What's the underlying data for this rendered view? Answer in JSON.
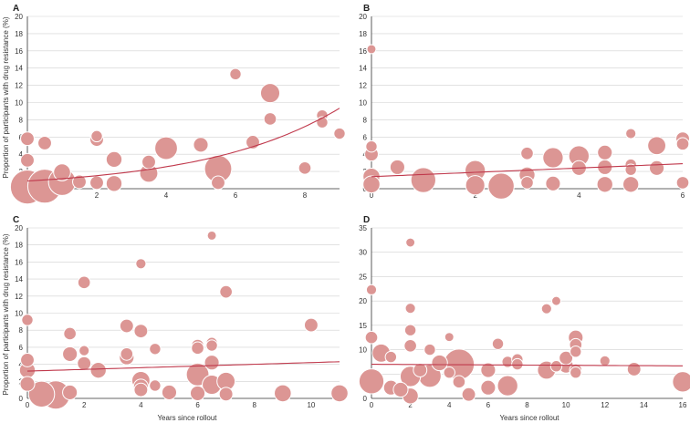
{
  "figure": {
    "ylabel": "Proportion of participants with drug resistance (%)",
    "xlabel": "Years since rollout"
  },
  "colors": {
    "bubble": "#dc9694",
    "trend": "#c0394c",
    "grid": "#d0d0d0",
    "axis": "#333333"
  },
  "chart_data": [
    {
      "panel": "A",
      "type": "scatter",
      "xlim": [
        0,
        9
      ],
      "ylim": [
        0,
        20
      ],
      "xticks": [
        0,
        2,
        4,
        6,
        8
      ],
      "yticks": [
        0,
        2,
        4,
        6,
        8,
        10,
        12,
        14,
        16,
        18,
        20
      ],
      "grid": true,
      "trend": {
        "kind": "exp",
        "a": 0.9,
        "b": 0.26
      },
      "points": [
        {
          "x": 0,
          "y": 0.2,
          "w": 3
        },
        {
          "x": 0,
          "y": 3.3,
          "w": 1.2
        },
        {
          "x": 0,
          "y": 5.8,
          "w": 1.2
        },
        {
          "x": 0.5,
          "y": 0.3,
          "w": 3
        },
        {
          "x": 0.5,
          "y": 5.3,
          "w": 1.2
        },
        {
          "x": 1,
          "y": 0.8,
          "w": 2.4
        },
        {
          "x": 1,
          "y": 1.9,
          "w": 1.5
        },
        {
          "x": 1.5,
          "y": 0.8,
          "w": 1.2
        },
        {
          "x": 2,
          "y": 0.7,
          "w": 1.2
        },
        {
          "x": 2,
          "y": 5.7,
          "w": 1.2
        },
        {
          "x": 2,
          "y": 6.1,
          "w": 1
        },
        {
          "x": 2.5,
          "y": 3.4,
          "w": 1.4
        },
        {
          "x": 2.5,
          "y": 0.6,
          "w": 1.4
        },
        {
          "x": 3.5,
          "y": 1.8,
          "w": 1.6
        },
        {
          "x": 3.5,
          "y": 3.1,
          "w": 1.2
        },
        {
          "x": 4,
          "y": 4.7,
          "w": 2
        },
        {
          "x": 5,
          "y": 5.1,
          "w": 1.3
        },
        {
          "x": 5.5,
          "y": 2.3,
          "w": 2.4
        },
        {
          "x": 5.5,
          "y": 0.7,
          "w": 1.2
        },
        {
          "x": 6,
          "y": 13.3,
          "w": 1
        },
        {
          "x": 6.5,
          "y": 5.4,
          "w": 1.2
        },
        {
          "x": 7,
          "y": 11.1,
          "w": 1.7
        },
        {
          "x": 7,
          "y": 8.1,
          "w": 1.1
        },
        {
          "x": 8,
          "y": 2.4,
          "w": 1.1
        },
        {
          "x": 8.5,
          "y": 8.5,
          "w": 1
        },
        {
          "x": 8.5,
          "y": 7.7,
          "w": 1
        },
        {
          "x": 9,
          "y": 6.4,
          "w": 1
        }
      ]
    },
    {
      "panel": "B",
      "type": "scatter",
      "xlim": [
        0,
        6
      ],
      "ylim": [
        0,
        20
      ],
      "xticks": [
        0,
        2,
        4,
        6
      ],
      "yticks": [
        0,
        2,
        4,
        6,
        8,
        10,
        12,
        14,
        16,
        18,
        20
      ],
      "grid": true,
      "trend": {
        "kind": "linear",
        "a": 1.4,
        "b": 0.25
      },
      "points": [
        {
          "x": 0,
          "y": 16.2,
          "w": 0.8
        },
        {
          "x": 0,
          "y": 4.9,
          "w": 1
        },
        {
          "x": 0,
          "y": 4,
          "w": 1.2
        },
        {
          "x": 0,
          "y": 1.4,
          "w": 1.5
        },
        {
          "x": 0,
          "y": 0.5,
          "w": 1.5
        },
        {
          "x": 0.5,
          "y": 2.5,
          "w": 1.3
        },
        {
          "x": 1,
          "y": 1,
          "w": 2.2
        },
        {
          "x": 2,
          "y": 2.1,
          "w": 1.8
        },
        {
          "x": 2,
          "y": 0.4,
          "w": 1.7
        },
        {
          "x": 2.5,
          "y": 0.3,
          "w": 2.3
        },
        {
          "x": 3,
          "y": 4.1,
          "w": 1.1
        },
        {
          "x": 3,
          "y": 1.6,
          "w": 1.4
        },
        {
          "x": 3,
          "y": 0.7,
          "w": 1.1
        },
        {
          "x": 3.5,
          "y": 3.6,
          "w": 1.8
        },
        {
          "x": 3.5,
          "y": 0.6,
          "w": 1.3
        },
        {
          "x": 4,
          "y": 3.8,
          "w": 1.8
        },
        {
          "x": 4,
          "y": 2.4,
          "w": 1.3
        },
        {
          "x": 4.5,
          "y": 4.2,
          "w": 1.3
        },
        {
          "x": 4.5,
          "y": 2.5,
          "w": 1.3
        },
        {
          "x": 4.5,
          "y": 0.5,
          "w": 1.4
        },
        {
          "x": 5,
          "y": 6.4,
          "w": 0.9
        },
        {
          "x": 5,
          "y": 2.8,
          "w": 1
        },
        {
          "x": 5,
          "y": 2.2,
          "w": 1
        },
        {
          "x": 5,
          "y": 0.5,
          "w": 1.4
        },
        {
          "x": 5.5,
          "y": 5,
          "w": 1.6
        },
        {
          "x": 5.5,
          "y": 2.4,
          "w": 1.3
        },
        {
          "x": 6,
          "y": 5.8,
          "w": 1.2
        },
        {
          "x": 6,
          "y": 5.2,
          "w": 1.1
        },
        {
          "x": 6,
          "y": 0.7,
          "w": 1.1
        }
      ]
    },
    {
      "panel": "C",
      "type": "scatter",
      "xlim": [
        0,
        11
      ],
      "ylim": [
        0,
        20
      ],
      "xticks": [
        0,
        2,
        4,
        6,
        8,
        10
      ],
      "yticks": [
        0,
        2,
        4,
        6,
        8,
        10,
        12,
        14,
        16,
        18,
        20
      ],
      "grid": true,
      "trend": {
        "kind": "linear",
        "a": 3.2,
        "b": 0.1
      },
      "points": [
        {
          "x": 0,
          "y": 9.2,
          "w": 1
        },
        {
          "x": 0,
          "y": 4.5,
          "w": 1.2
        },
        {
          "x": 0,
          "y": 3.3,
          "w": 1.4
        },
        {
          "x": 0,
          "y": 1.7,
          "w": 1.3
        },
        {
          "x": 0.5,
          "y": 0.5,
          "w": 2.3
        },
        {
          "x": 1,
          "y": 0.4,
          "w": 2.5
        },
        {
          "x": 1.5,
          "y": 7.6,
          "w": 1.1
        },
        {
          "x": 1.5,
          "y": 5.2,
          "w": 1.3
        },
        {
          "x": 1.5,
          "y": 0.7,
          "w": 1.3
        },
        {
          "x": 2,
          "y": 13.6,
          "w": 1.1
        },
        {
          "x": 2,
          "y": 5.6,
          "w": 0.9
        },
        {
          "x": 2,
          "y": 4.1,
          "w": 1.2
        },
        {
          "x": 2.5,
          "y": 3.3,
          "w": 1.4
        },
        {
          "x": 3.5,
          "y": 8.5,
          "w": 1.2
        },
        {
          "x": 3.5,
          "y": 5.2,
          "w": 1.1
        },
        {
          "x": 3.5,
          "y": 4.8,
          "w": 1.3
        },
        {
          "x": 4,
          "y": 15.8,
          "w": 0.9
        },
        {
          "x": 4,
          "y": 7.9,
          "w": 1.2
        },
        {
          "x": 4,
          "y": 2.1,
          "w": 1.6
        },
        {
          "x": 4,
          "y": 1.4,
          "w": 1.3
        },
        {
          "x": 4,
          "y": 1,
          "w": 1.2
        },
        {
          "x": 4.5,
          "y": 5.8,
          "w": 1
        },
        {
          "x": 4.5,
          "y": 1.5,
          "w": 1
        },
        {
          "x": 5,
          "y": 0.7,
          "w": 1.3
        },
        {
          "x": 6,
          "y": 6.2,
          "w": 1.1
        },
        {
          "x": 6,
          "y": 5.9,
          "w": 1.1
        },
        {
          "x": 6,
          "y": 2.8,
          "w": 2
        },
        {
          "x": 6,
          "y": 0.6,
          "w": 1.3
        },
        {
          "x": 6.5,
          "y": 19.1,
          "w": 0.8
        },
        {
          "x": 6.5,
          "y": 6.5,
          "w": 1
        },
        {
          "x": 6.5,
          "y": 6.2,
          "w": 1
        },
        {
          "x": 6.5,
          "y": 4.2,
          "w": 1.3
        },
        {
          "x": 6.5,
          "y": 1.6,
          "w": 1.7
        },
        {
          "x": 7,
          "y": 12.5,
          "w": 1.1
        },
        {
          "x": 7,
          "y": 2,
          "w": 1.6
        },
        {
          "x": 7,
          "y": 0.5,
          "w": 1.2
        },
        {
          "x": 9,
          "y": 0.6,
          "w": 1.5
        },
        {
          "x": 10,
          "y": 8.6,
          "w": 1.2
        },
        {
          "x": 11,
          "y": 0.6,
          "w": 1.5
        }
      ]
    },
    {
      "panel": "D",
      "type": "scatter",
      "xlim": [
        0,
        16
      ],
      "ylim": [
        0,
        35
      ],
      "xticks": [
        0,
        2,
        4,
        6,
        8,
        10,
        12,
        14,
        16
      ],
      "yticks": [
        0,
        5,
        10,
        15,
        20,
        25,
        30,
        35
      ],
      "grid": true,
      "trend": {
        "kind": "linear",
        "a": 7.0,
        "b": -0.02
      },
      "points": [
        {
          "x": 0,
          "y": 22.3,
          "w": 0.9
        },
        {
          "x": 0,
          "y": 12.5,
          "w": 1.1
        },
        {
          "x": 0,
          "y": 3.5,
          "w": 2.2
        },
        {
          "x": 0.5,
          "y": 9.3,
          "w": 1.6
        },
        {
          "x": 1,
          "y": 2.2,
          "w": 1.3
        },
        {
          "x": 1,
          "y": 8.5,
          "w": 1
        },
        {
          "x": 1.5,
          "y": 1.8,
          "w": 1.3
        },
        {
          "x": 2,
          "y": 32,
          "w": 0.8
        },
        {
          "x": 2,
          "y": 18.5,
          "w": 0.9
        },
        {
          "x": 2,
          "y": 14,
          "w": 1
        },
        {
          "x": 2,
          "y": 10.8,
          "w": 1.1
        },
        {
          "x": 2,
          "y": 4.5,
          "w": 1.8
        },
        {
          "x": 2,
          "y": 0.5,
          "w": 1.4
        },
        {
          "x": 2.5,
          "y": 5.8,
          "w": 1.2
        },
        {
          "x": 3,
          "y": 10,
          "w": 1
        },
        {
          "x": 3,
          "y": 4.6,
          "w": 2
        },
        {
          "x": 3.5,
          "y": 7.3,
          "w": 1.4
        },
        {
          "x": 4,
          "y": 12.6,
          "w": 0.8
        },
        {
          "x": 4,
          "y": 5.3,
          "w": 1
        },
        {
          "x": 4.5,
          "y": 7,
          "w": 2.7
        },
        {
          "x": 4.5,
          "y": 3.4,
          "w": 1.1
        },
        {
          "x": 5,
          "y": 0.8,
          "w": 1.2
        },
        {
          "x": 6,
          "y": 5.8,
          "w": 1.3
        },
        {
          "x": 6,
          "y": 2.2,
          "w": 1.3
        },
        {
          "x": 6.5,
          "y": 11.2,
          "w": 1
        },
        {
          "x": 7,
          "y": 7.5,
          "w": 1
        },
        {
          "x": 7,
          "y": 2.6,
          "w": 1.8
        },
        {
          "x": 7.5,
          "y": 8,
          "w": 1
        },
        {
          "x": 7.5,
          "y": 7,
          "w": 1
        },
        {
          "x": 9,
          "y": 18.4,
          "w": 0.9
        },
        {
          "x": 9,
          "y": 5.8,
          "w": 1.6
        },
        {
          "x": 9.5,
          "y": 20,
          "w": 0.8
        },
        {
          "x": 9.5,
          "y": 6.6,
          "w": 1
        },
        {
          "x": 10,
          "y": 8.3,
          "w": 1.2
        },
        {
          "x": 10,
          "y": 6.7,
          "w": 1.3
        },
        {
          "x": 10.5,
          "y": 12.5,
          "w": 1.3
        },
        {
          "x": 10.5,
          "y": 11,
          "w": 1.1
        },
        {
          "x": 10.5,
          "y": 9.6,
          "w": 1
        },
        {
          "x": 10.5,
          "y": 5.8,
          "w": 1.1
        },
        {
          "x": 10.5,
          "y": 5.3,
          "w": 1
        },
        {
          "x": 12,
          "y": 7.7,
          "w": 0.9
        },
        {
          "x": 13.5,
          "y": 6,
          "w": 1.2
        },
        {
          "x": 16,
          "y": 3.4,
          "w": 1.8
        }
      ]
    }
  ]
}
